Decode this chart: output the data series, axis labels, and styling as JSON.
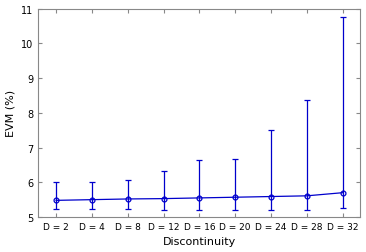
{
  "x_labels": [
    "D = 2",
    "D = 4",
    "D = 8",
    "D = 12",
    "D = 16",
    "D = 20",
    "D = 24",
    "D = 28",
    "D = 32"
  ],
  "x_values": [
    1,
    2,
    3,
    4,
    5,
    6,
    7,
    8,
    9
  ],
  "y_values": [
    5.48,
    5.5,
    5.52,
    5.53,
    5.55,
    5.57,
    5.59,
    5.61,
    5.7
  ],
  "y_err_upper": [
    0.52,
    0.52,
    0.55,
    0.8,
    1.08,
    1.1,
    1.92,
    2.75,
    5.05
  ],
  "y_err_lower": [
    0.25,
    0.27,
    0.3,
    0.33,
    0.35,
    0.37,
    0.38,
    0.4,
    0.43
  ],
  "ylim": [
    5.0,
    11.0
  ],
  "yticks": [
    5,
    6,
    7,
    8,
    9,
    10,
    11
  ],
  "ylabel": "EVM (%)",
  "xlabel": "Discontinuity",
  "line_color": "#0000CC",
  "marker": "o",
  "marker_size": 3.5,
  "capsize": 2.5,
  "background_color": "#ffffff"
}
